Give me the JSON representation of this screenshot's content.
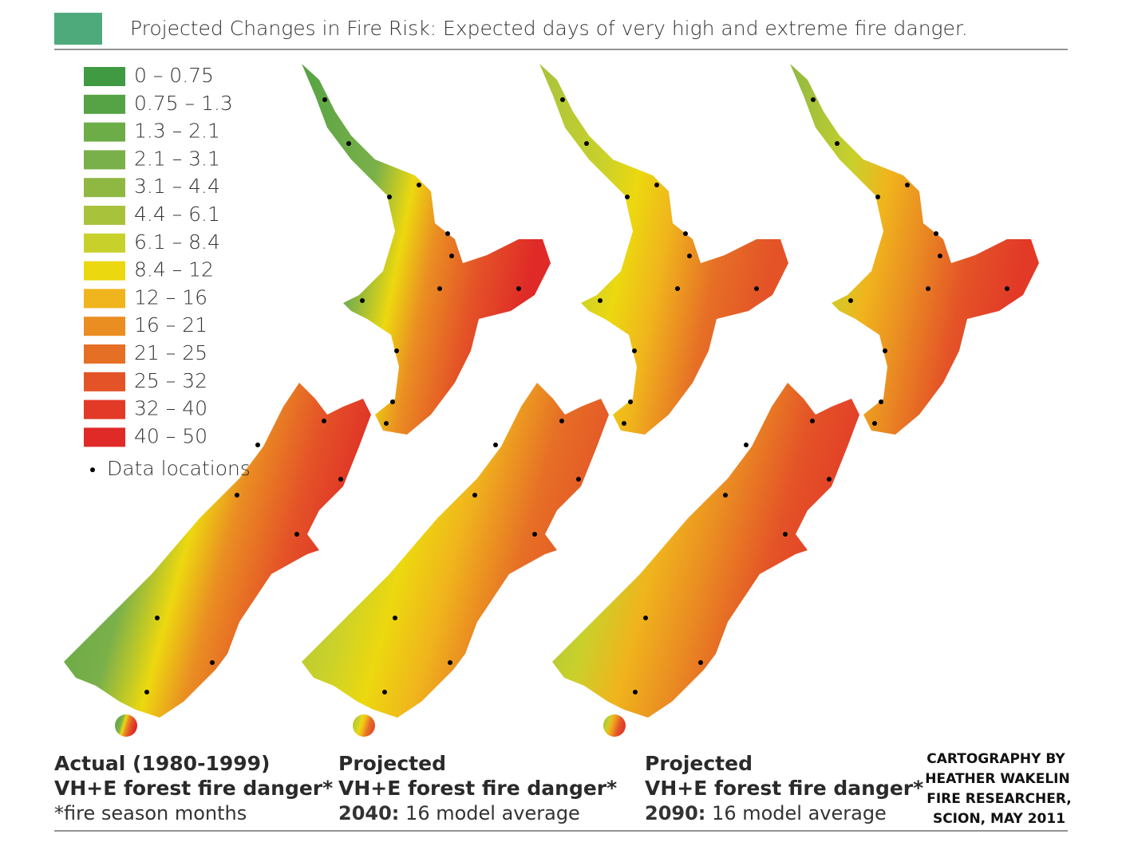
{
  "header": {
    "title": "Projected Changes in Fire Risk: Expected days of very high and extreme fire danger."
  },
  "legend": {
    "items": [
      {
        "label": "0 – 0.75",
        "color": "#3f9a41"
      },
      {
        "label": "0.75 – 1.3",
        "color": "#55a344"
      },
      {
        "label": "1.3 – 2.1",
        "color": "#6cad47"
      },
      {
        "label": "2.1 – 3.1",
        "color": "#7ab04a"
      },
      {
        "label": "3.1 – 4.4",
        "color": "#8fb843"
      },
      {
        "label": "4.4 – 6.1",
        "color": "#a8c23c"
      },
      {
        "label": "6.1 – 8.4",
        "color": "#c8d12c"
      },
      {
        "label": "8.4 – 12",
        "color": "#ecd80f"
      },
      {
        "label": "12 – 16",
        "color": "#f0b41c"
      },
      {
        "label": "16 – 21",
        "color": "#ea8e22"
      },
      {
        "label": "21 – 25",
        "color": "#e66f26"
      },
      {
        "label": "25 – 32",
        "color": "#e45327"
      },
      {
        "label": "32 – 40",
        "color": "#e23a27"
      },
      {
        "label": "40 – 50",
        "color": "#df2a27"
      }
    ],
    "note": "Data locations"
  },
  "panels": [
    {
      "line1": "Actual (1980-1999)",
      "line2": "VH+E forest fire danger*",
      "line3": "*fire season months"
    },
    {
      "line1": "Projected",
      "line2": "VH+E forest fire danger*",
      "year": "2040:",
      "line3": "16 model average"
    },
    {
      "line1": "Projected",
      "line2": "VH+E forest fire danger*",
      "year": "2090:",
      "line3": "16 model average"
    }
  ],
  "credit": [
    "CARTOGRAPHY BY",
    "HEATHER WAKELIN",
    "FIRE RESEARCHER,",
    "SCION, MAY 2011"
  ]
}
